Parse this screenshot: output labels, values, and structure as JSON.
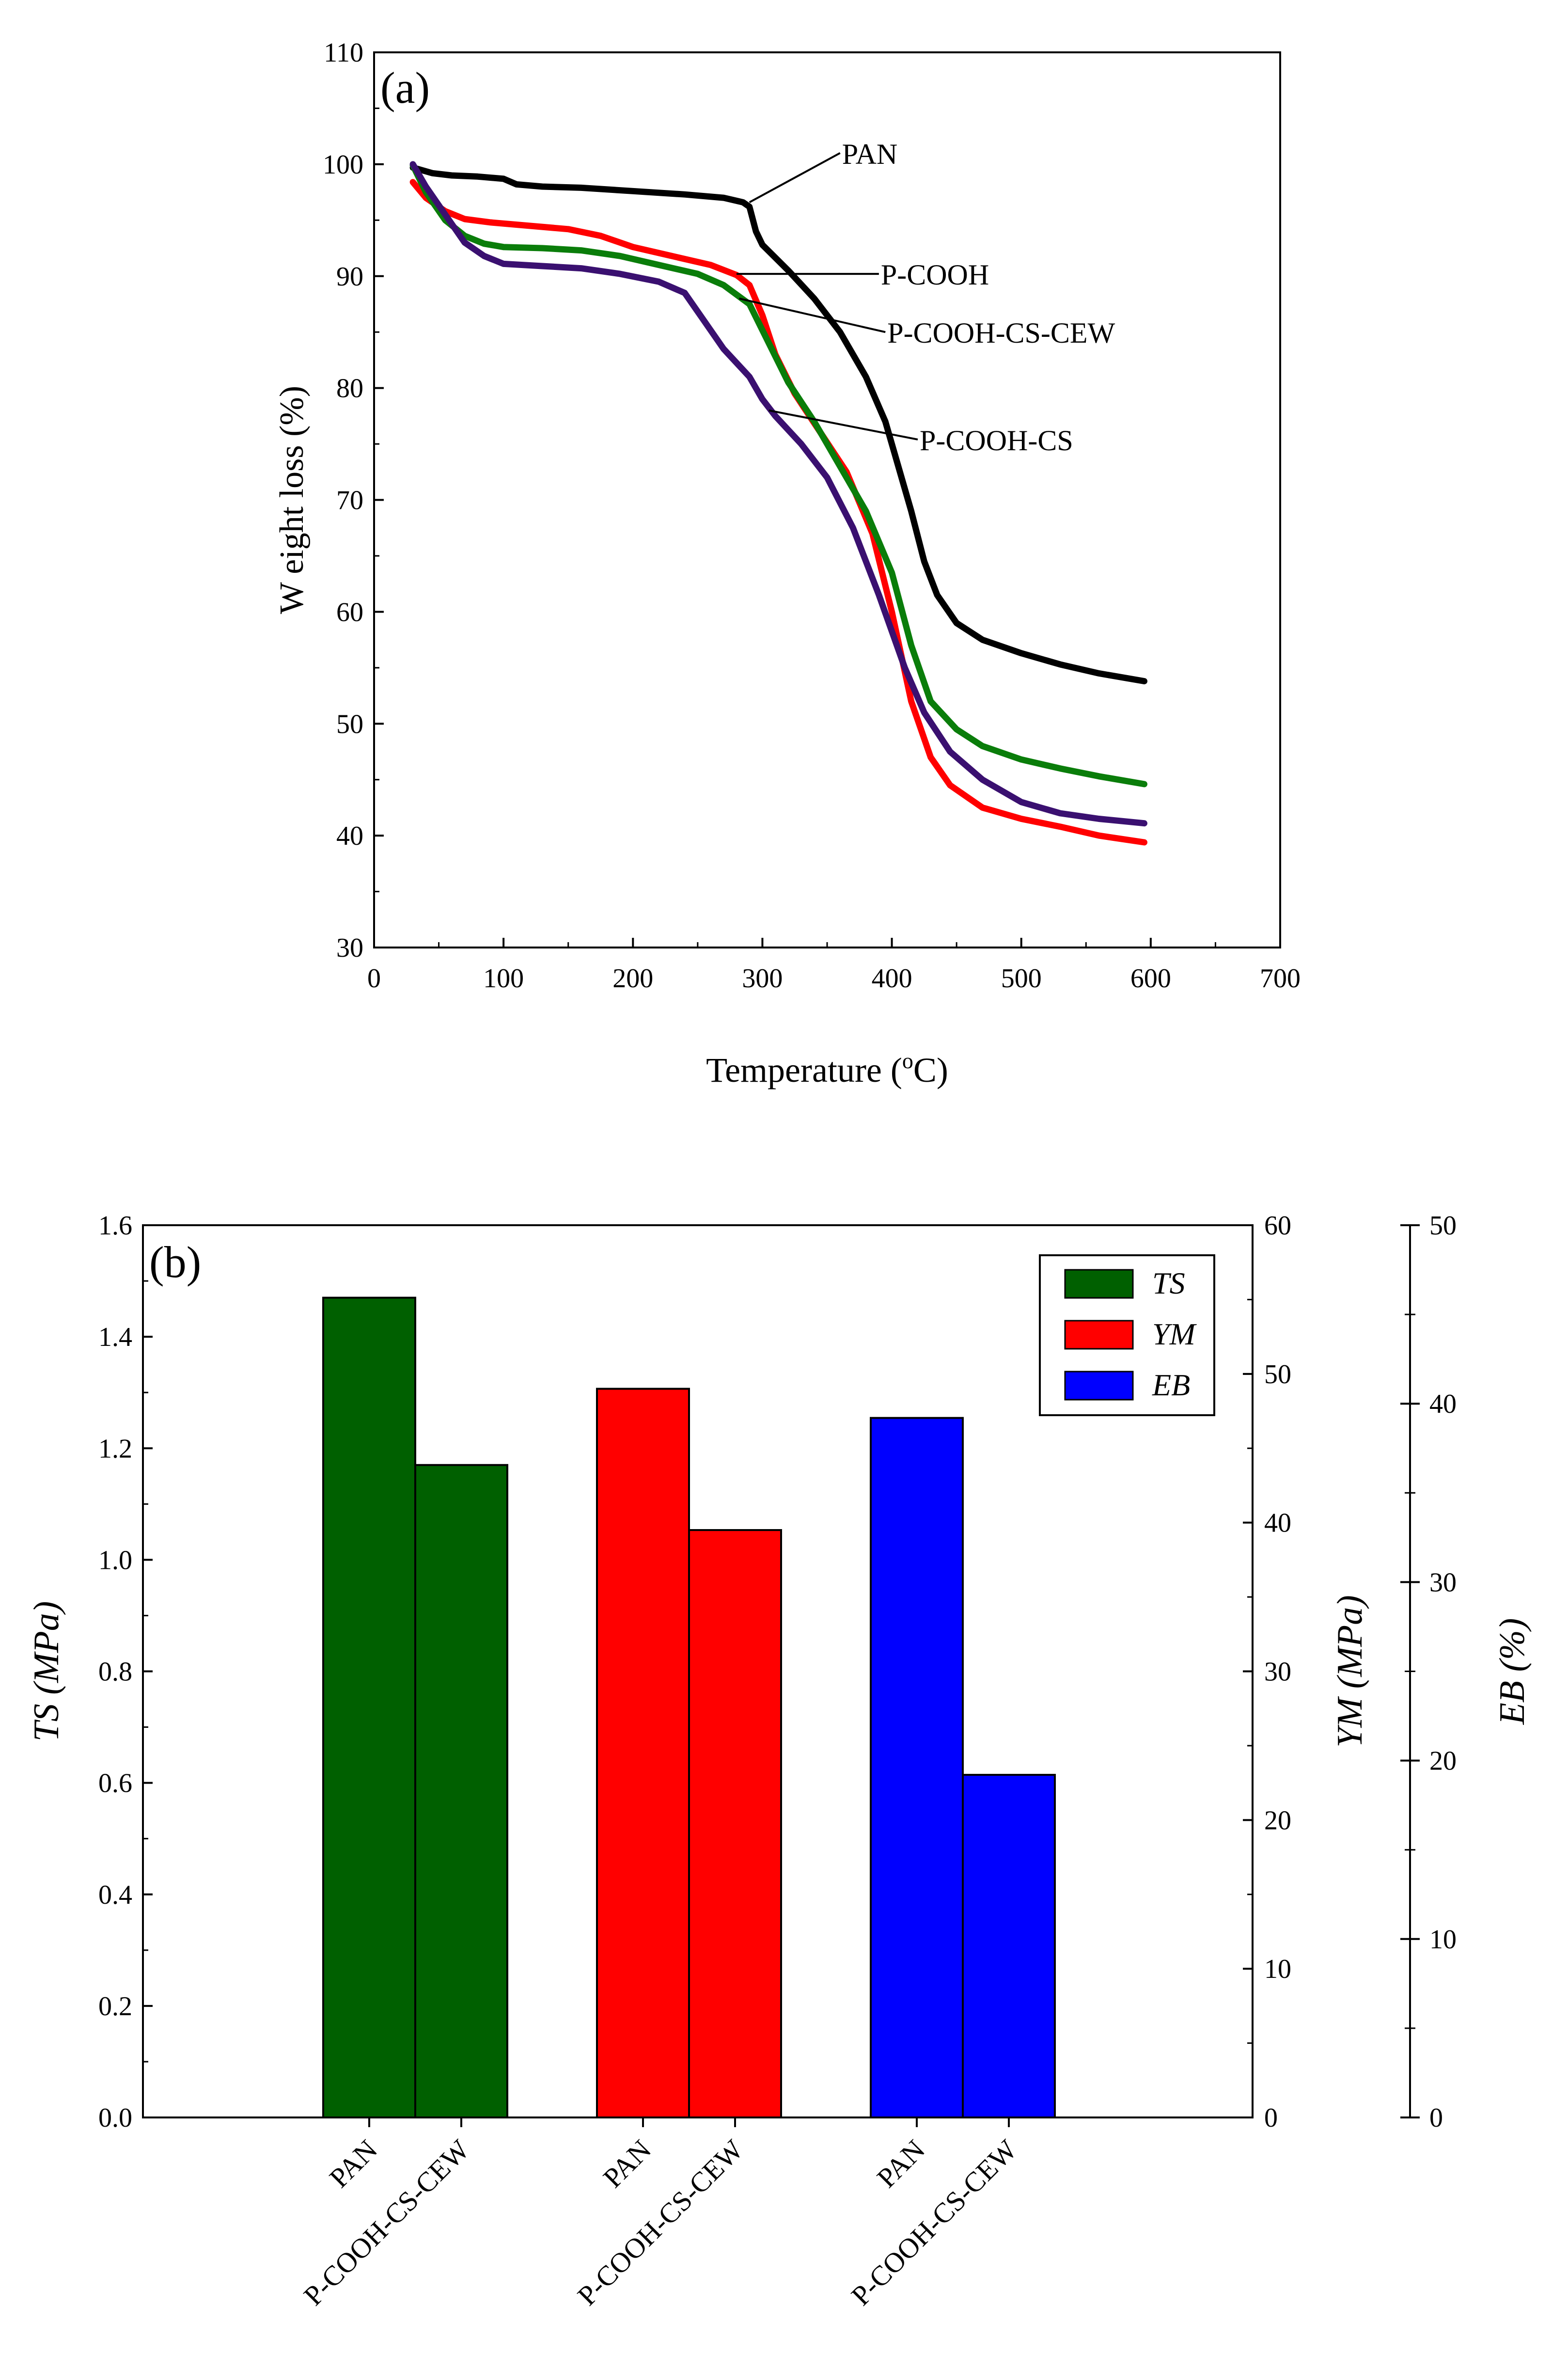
{
  "chart_data": [
    {
      "type": "line",
      "panel_label": "(a)",
      "title": "",
      "xlabel_pre": "Temperature (",
      "xlabel_sup": "o",
      "xlabel_post": "C)",
      "ylabel": "W eight loss (%)",
      "xlim": [
        0,
        700
      ],
      "ylim": [
        30,
        110
      ],
      "xticks": [
        0,
        100,
        200,
        300,
        400,
        500,
        600,
        700
      ],
      "yticks": [
        30,
        40,
        50,
        60,
        70,
        80,
        90,
        100,
        110
      ],
      "series": [
        {
          "name": "PAN",
          "color": "#000000",
          "points": [
            [
              30,
              99.7
            ],
            [
              45,
              99.2
            ],
            [
              60,
              99.0
            ],
            [
              80,
              98.9
            ],
            [
              100,
              98.7
            ],
            [
              110,
              98.2
            ],
            [
              130,
              98.0
            ],
            [
              160,
              97.9
            ],
            [
              200,
              97.6
            ],
            [
              240,
              97.3
            ],
            [
              270,
              97.0
            ],
            [
              285,
              96.6
            ],
            [
              290,
              96.2
            ],
            [
              295,
              94.0
            ],
            [
              300,
              92.8
            ],
            [
              320,
              90.5
            ],
            [
              340,
              88.0
            ],
            [
              360,
              85.0
            ],
            [
              380,
              81.0
            ],
            [
              395,
              77.0
            ],
            [
              405,
              73.0
            ],
            [
              415,
              69.0
            ],
            [
              425,
              64.5
            ],
            [
              435,
              61.5
            ],
            [
              450,
              59.0
            ],
            [
              470,
              57.5
            ],
            [
              500,
              56.3
            ],
            [
              530,
              55.3
            ],
            [
              560,
              54.5
            ],
            [
              595,
              53.8
            ]
          ]
        },
        {
          "name": "P-COOH",
          "color": "#ff0000",
          "points": [
            [
              30,
              98.4
            ],
            [
              40,
              97.0
            ],
            [
              55,
              95.8
            ],
            [
              70,
              95.1
            ],
            [
              90,
              94.8
            ],
            [
              120,
              94.5
            ],
            [
              150,
              94.2
            ],
            [
              175,
              93.6
            ],
            [
              200,
              92.6
            ],
            [
              230,
              91.8
            ],
            [
              260,
              91.0
            ],
            [
              280,
              90.1
            ],
            [
              290,
              89.2
            ],
            [
              300,
              86.5
            ],
            [
              310,
              83.0
            ],
            [
              325,
              79.5
            ],
            [
              345,
              76.0
            ],
            [
              365,
              72.5
            ],
            [
              385,
              67.0
            ],
            [
              400,
              60.0
            ],
            [
              415,
              52.0
            ],
            [
              430,
              47.0
            ],
            [
              445,
              44.5
            ],
            [
              470,
              42.5
            ],
            [
              500,
              41.5
            ],
            [
              530,
              40.8
            ],
            [
              560,
              40.0
            ],
            [
              595,
              39.4
            ]
          ]
        },
        {
          "name": "P-COOH-CS-CEW",
          "color": "#0a7d0a",
          "points": [
            [
              30,
              99.9
            ],
            [
              40,
              97.5
            ],
            [
              55,
              95.0
            ],
            [
              70,
              93.6
            ],
            [
              85,
              92.9
            ],
            [
              100,
              92.6
            ],
            [
              130,
              92.5
            ],
            [
              160,
              92.3
            ],
            [
              190,
              91.8
            ],
            [
              220,
              91.0
            ],
            [
              250,
              90.2
            ],
            [
              270,
              89.2
            ],
            [
              290,
              87.5
            ],
            [
              305,
              84.0
            ],
            [
              320,
              80.5
            ],
            [
              340,
              77.0
            ],
            [
              360,
              73.0
            ],
            [
              380,
              69.0
            ],
            [
              400,
              63.5
            ],
            [
              415,
              57.0
            ],
            [
              430,
              52.0
            ],
            [
              450,
              49.5
            ],
            [
              470,
              48.0
            ],
            [
              500,
              46.8
            ],
            [
              530,
              46.0
            ],
            [
              560,
              45.3
            ],
            [
              595,
              44.6
            ]
          ]
        },
        {
          "name": "P-COOH-CS",
          "color": "#3a1070",
          "points": [
            [
              30,
              100.0
            ],
            [
              40,
              98.0
            ],
            [
              55,
              95.5
            ],
            [
              70,
              93.0
            ],
            [
              85,
              91.8
            ],
            [
              100,
              91.1
            ],
            [
              130,
              90.9
            ],
            [
              160,
              90.7
            ],
            [
              190,
              90.2
            ],
            [
              220,
              89.5
            ],
            [
              240,
              88.5
            ],
            [
              255,
              86.0
            ],
            [
              270,
              83.5
            ],
            [
              290,
              81.0
            ],
            [
              300,
              79.0
            ],
            [
              310,
              77.5
            ],
            [
              330,
              75.0
            ],
            [
              350,
              72.0
            ],
            [
              370,
              67.5
            ],
            [
              390,
              61.5
            ],
            [
              410,
              55.0
            ],
            [
              425,
              51.0
            ],
            [
              445,
              47.5
            ],
            [
              470,
              45.0
            ],
            [
              500,
              43.0
            ],
            [
              530,
              42.0
            ],
            [
              560,
              41.5
            ],
            [
              595,
              41.1
            ]
          ]
        }
      ],
      "annotations": [
        {
          "text": "PAN",
          "point": [
            290,
            96.6
          ],
          "label": [
            360,
            101.0
          ]
        },
        {
          "text": "P-COOH",
          "point": [
            280,
            90.2
          ],
          "label": [
            390,
            90.2
          ]
        },
        {
          "text": "P-COOH-CS-CEW",
          "point": [
            282,
            88.0
          ],
          "label": [
            395,
            85.0
          ]
        },
        {
          "text": "P-COOH-CS",
          "point": [
            305,
            78.0
          ],
          "label": [
            420,
            75.4
          ]
        }
      ]
    },
    {
      "type": "bar",
      "panel_label": "(b)",
      "title": "",
      "categories": [
        "PAN",
        "P-COOH-CS-CEW"
      ],
      "series": [
        {
          "name": "TS",
          "color": "#006000",
          "axis": "TS (MPa)",
          "values": [
            1.47,
            1.17
          ]
        },
        {
          "name": "YM",
          "color": "#ff0000",
          "axis": "YM (MPa)",
          "values": [
            49.0,
            39.5
          ]
        },
        {
          "name": "EB",
          "color": "#0000ff",
          "axis": "EB (%)",
          "values": [
            39.2,
            19.2
          ]
        }
      ],
      "axes": {
        "TS": {
          "label": "TS (MPa)",
          "lim": [
            0,
            1.6
          ],
          "ticks": [
            "0.0",
            "0.2",
            "0.4",
            "0.6",
            "0.8",
            "1.0",
            "1.2",
            "1.4",
            "1.6"
          ]
        },
        "YM": {
          "label": "YM (MPa)",
          "lim": [
            0,
            60
          ],
          "ticks": [
            "0",
            "10",
            "20",
            "30",
            "40",
            "50",
            "60"
          ]
        },
        "EB": {
          "label": "EB (%)",
          "lim": [
            0,
            50
          ],
          "ticks": [
            "0",
            "10",
            "20",
            "30",
            "40",
            "50"
          ]
        }
      },
      "xtick_labels": [
        "PAN",
        "P-COOH-CS-CEW",
        "PAN",
        "P-COOH-CS-CEW",
        "PAN",
        "P-COOH-CS-CEW"
      ],
      "legend": [
        "TS",
        "YM",
        "EB"
      ],
      "legend_position": "top-right"
    }
  ]
}
